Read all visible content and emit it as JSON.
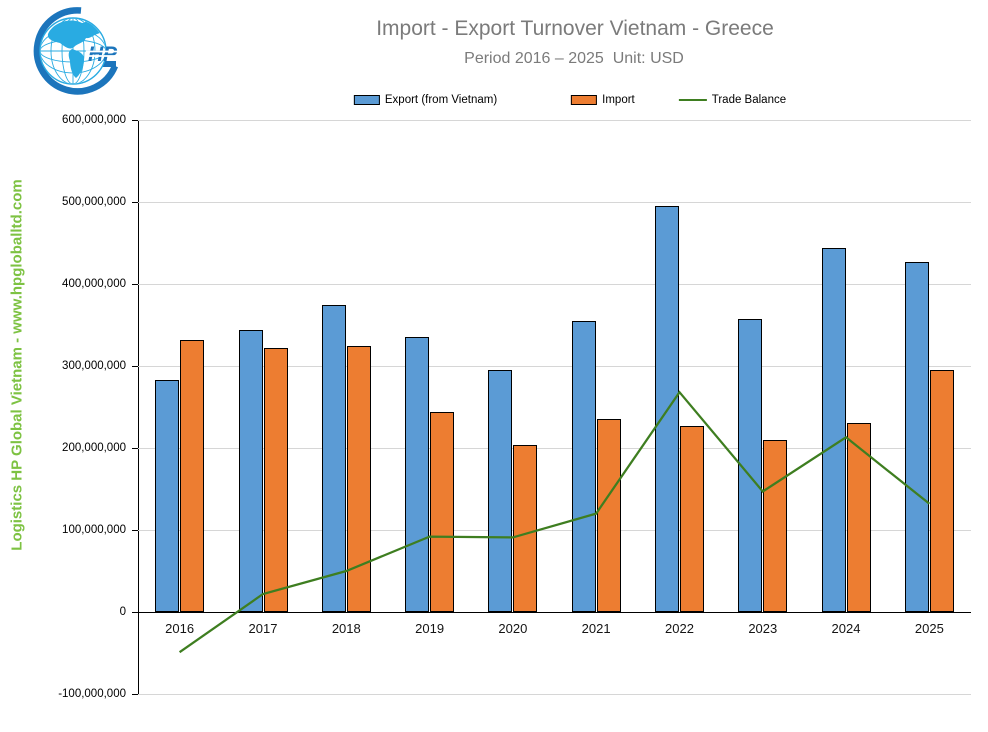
{
  "header": {
    "title": "Import - Export Turnover Vietnam - Greece",
    "subtitle": "Period 2016 – 2025  Unit: USD"
  },
  "logo": {
    "monogram": "HP"
  },
  "watermark": "Logistics HP Global Vietnam - www.hpgloballtd.com",
  "colors": {
    "export_bar": "#5B9BD5",
    "import_bar": "#ED7D31",
    "trade_balance_line": "#3E7E20",
    "bar_border": "#000000",
    "title_text": "#7B7B7B",
    "watermark_text": "#7DC242",
    "gridline": "#D6D6D6",
    "axis": "#000000",
    "logo_light_blue": "#29ABE2",
    "logo_dark_blue": "#1C75BC"
  },
  "chart_data": {
    "type": "bar",
    "title": "Import - Export Turnover Vietnam - Greece",
    "subtitle": "Period 2016 – 2025  Unit: USD",
    "unit": "USD",
    "categories": [
      "2016",
      "2017",
      "2018",
      "2019",
      "2020",
      "2021",
      "2022",
      "2023",
      "2024",
      "2025"
    ],
    "series": [
      {
        "name": "Export (from Vietnam)",
        "type": "bar",
        "color": "#5B9BD5",
        "values": [
          283000000,
          344000000,
          374000000,
          336000000,
          295000000,
          355000000,
          495000000,
          357000000,
          444000000,
          427000000
        ]
      },
      {
        "name": "Import",
        "type": "bar",
        "color": "#ED7D31",
        "values": [
          332000000,
          322000000,
          324000000,
          244000000,
          204000000,
          235000000,
          227000000,
          210000000,
          231000000,
          295000000
        ]
      },
      {
        "name": "Trade Balance",
        "type": "line",
        "color": "#3E7E20",
        "values": [
          -49000000,
          22000000,
          50000000,
          92000000,
          91000000,
          120000000,
          268000000,
          147000000,
          213000000,
          132000000
        ]
      }
    ],
    "ylim": [
      -100000000,
      600000000
    ],
    "ytick_step": 100000000,
    "ytick_labels": [
      "600,000,000",
      "500,000,000",
      "400,000,000",
      "300,000,000",
      "200,000,000",
      "100,000,000",
      "0",
      "-100,000,000"
    ],
    "grid": true,
    "legend_position": "top"
  }
}
